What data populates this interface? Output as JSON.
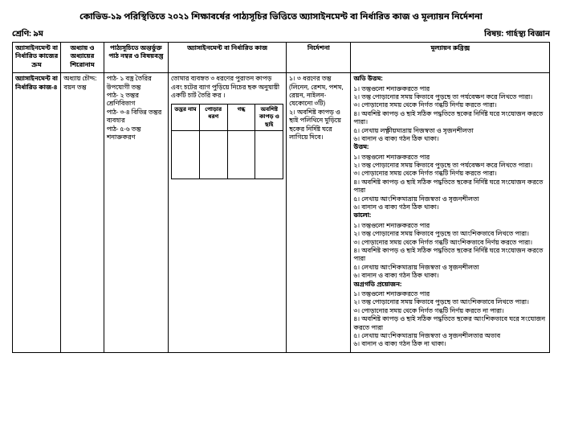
{
  "title": "কোভিড-১৯ পরিস্থিতিতে ২০২১ শিক্ষাবর্ষের পাঠ্যসূচির ভিত্তিতে অ্যাসাইনমেন্ট বা নির্ধারিত কাজ ও মূল্যায়ন নির্দেশনা",
  "class_label": "শ্রেণি: ৯ম",
  "subject_label": "বিষয়: গার্হস্থ্য বিজ্ঞান",
  "headers": {
    "h1": "অ্যাসাইনমেন্ট বা নির্ধারিত কাজের ক্রম",
    "h2": "অধ্যায় ও অধ্যায়ের শিরোনাম",
    "h3": "পাঠ্যসূচিতে অন্তর্ভুক্ত পাঠ নম্বর ও বিষয়বস্তু",
    "h4": "অ্যাসাইনমেন্ট বা নির্ধারিত কাজ",
    "h5": "নির্দেশনা",
    "h6": "মূল্যায়ন রুব্রিক্স"
  },
  "row": {
    "c1": "অ্যাসাইনমেন্ট বা নির্ধারিত কাজ-৪",
    "c2": "অধ্যায় চৌদ্দ: বয়ন তন্তু",
    "c3": "পাঠ- ১ বস্ত্র তৈরির উপযোগী তন্তু\nপাঠ- ২ তন্তুর শ্রেণিবিভাগ\nপাঠ- ৩-৪ বিভিন্ন তন্তুর ব্যবহার\nপাঠ- ৫-৬ তন্তু শনাক্তকরণ",
    "c4_text": "তোমার ব্যবহৃত ৩ ধরণের পুরাতন কাপড় এবং চটের ব্যাগ পুড়িয়ে নিচের ছক অনুযায়ী একটি চার্ট তৈরি কর ।",
    "inner_headers": {
      "a": "তন্তুর নাম",
      "b": "পোড়ার ধরণ",
      "c": "গন্ধ",
      "d": "অবশিষ্ট কাপড় ও ছাই"
    },
    "c5": "১। ৩ ধরণের তন্তু\n(লিনেন, রেশম, পশম, রেয়ন, নাইলন- যেকোনো ৩টি)\n২। অবশিষ্ট কাপড় ও ছাই পলিথিনে মুড়িয়ে ছকের নির্দিষ্ট ঘরে লাগিয়ে দিবে।",
    "rubrics": {
      "r1_h": "অতি উত্তম:",
      "r1_1": "১। তন্তুগুলো শনাক্তকরতে পার",
      "r1_2": "২। তন্তু পোড়ানোর সময় কিভাবে পুড়ছে তা পর্যবেক্ষণ করে লিখতে পারা।",
      "r1_3": "৩। পোড়ানোর সময় থেকে নির্গত গন্ধটি নির্ণয় করতে পারা।",
      "r1_4": "৪। অবশিষ্ট কাপড় ও ছাই সঠিক পদ্ধতিতে ছকের নির্দিষ্ট ঘরে সংযোজন করতে পারা।",
      "r1_5": "৫। লেখায় লক্ষ্ণীয়মাত্রায় নিজস্বতা ও সৃজনশীলতা",
      "r1_6": "৬। বানান ও বাক্য গঠন ঠিক থাকা।",
      "r2_h": "উত্তম:",
      "r2_1": "১। তন্তুগুলো শনাক্তকরতে পার",
      "r2_2": "২। তন্তু পোড়ানোর সময় কিভাবে পুড়ছে তা পর্যবেক্ষণ করে লিখতে পারা।",
      "r2_3": "৩। পোড়ানোর সময় থেকে নির্গত গন্ধটি নির্ণয় করতে পারা।",
      "r2_4": "৪। অবশিষ্ট কাপড় ও ছাই সঠিক পদ্ধতিতে ছকের নির্দিষ্ট ঘরে সংযোজন করতে পারা",
      "r2_5": "৫। লেখায় আংশিকমাত্রায় নিজস্বতা ও সৃজনশীলতা",
      "r2_6": "৬। বানান ও বাক্য গঠন ঠিক থাকা।",
      "r3_h": "ভালো:",
      "r3_1": "১। তন্তুগুলো শনাক্তকরতে পার",
      "r3_2": "২। তন্তু পোড়ানোর সময় কিভাবে পুড়ছে তা আংশিকভাবে লিখতে পারা।",
      "r3_3": "৩। পোড়ানোর সময় থেকে নির্গত গন্ধটি আংশিকভাবে নির্ণয় করতে পারা।",
      "r3_4": "৪। অবশিষ্ট কাপড় ও ছাই সঠিক পদ্ধতিতে ছকের নির্দিষ্ট ঘরে সংযোজন করতে পারা",
      "r3_5": "৫। লেখায় আংশিকমাত্রায় নিজস্বতা ও সৃজনশীলতা",
      "r3_6": "৬। বানান ও বাক্য গঠন ঠিক থাকা।",
      "r4_h": "অগ্রগতি প্রয়োজন:",
      "r4_1": "১। তন্তুগুলো শনাক্তকরতে পার",
      "r4_2": "২। তন্তু পোড়ানোর সময় কিভাবে পুড়ছে তা আংশিকভাবে লিখতে পারা।",
      "r4_3": "৩। পোড়ানোর সময় থেকে নির্গত গন্ধটি নির্ণয় করতে না পারা।",
      "r4_4": "৪। অবশিষ্ট কাপড় ও ছাই সঠিক পদ্ধতিতে ছকের আংশিকভাবে ঘরে সংযোজন করতে পারা",
      "r4_5": "৫। লেখায় আংশিকমাত্রায় নিজস্বতা ও সৃজনশীলতার অভাব",
      "r4_6": "৬। বানান ও বাক্য গঠন ঠিক না থাকা।"
    }
  }
}
